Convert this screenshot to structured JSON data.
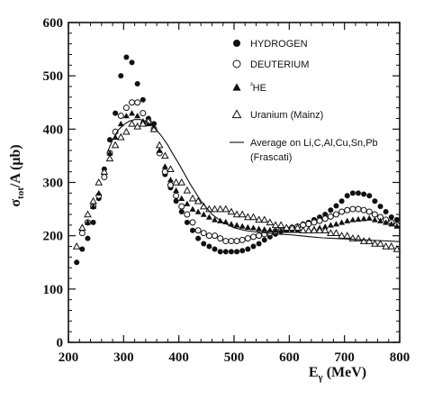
{
  "chart_data": {
    "type": "scatter",
    "xlabel": {
      "main": "E",
      "sub": "γ",
      "unit": " (MeV)"
    },
    "ylabel": {
      "main": "σ",
      "sub": "tot",
      "tail": "/A (μb)"
    },
    "xlim": [
      200,
      800
    ],
    "ylim": [
      0,
      600
    ],
    "xticks": [
      "200",
      "300",
      "400",
      "500",
      "600",
      "700",
      "800"
    ],
    "yticks": [
      "0",
      "100",
      "200",
      "300",
      "400",
      "500",
      "600"
    ],
    "grid": false,
    "legend_position": "top-right",
    "series": [
      {
        "name": "HYDROGEN",
        "marker": "filled-circle",
        "x": [
          215,
          225,
          235,
          245,
          255,
          265,
          275,
          285,
          295,
          305,
          315,
          325,
          335,
          345,
          355,
          365,
          375,
          385,
          395,
          405,
          415,
          425,
          435,
          445,
          455,
          465,
          475,
          485,
          495,
          505,
          515,
          525,
          535,
          545,
          555,
          565,
          575,
          585,
          595,
          605,
          615,
          625,
          635,
          645,
          655,
          665,
          675,
          685,
          695,
          705,
          715,
          725,
          735,
          745,
          755,
          765,
          775,
          785,
          795
        ],
        "y": [
          150,
          175,
          195,
          225,
          270,
          325,
          380,
          430,
          500,
          535,
          525,
          485,
          455,
          420,
          410,
          355,
          315,
          290,
          265,
          245,
          225,
          210,
          195,
          185,
          180,
          175,
          170,
          170,
          170,
          170,
          172,
          175,
          180,
          185,
          192,
          198,
          203,
          208,
          212,
          215,
          218,
          222,
          225,
          230,
          235,
          240,
          248,
          256,
          265,
          275,
          280,
          280,
          278,
          275,
          265,
          255,
          245,
          235,
          230
        ]
      },
      {
        "name": "DEUTERIUM",
        "marker": "open-circle",
        "x": [
          225,
          235,
          245,
          255,
          265,
          275,
          285,
          295,
          305,
          315,
          325,
          335,
          345,
          355,
          365,
          375,
          385,
          395,
          405,
          415,
          425,
          435,
          445,
          455,
          465,
          475,
          485,
          495,
          505,
          515,
          525,
          535,
          545,
          555,
          565,
          575,
          585,
          595,
          605,
          615,
          625,
          635,
          645,
          655,
          665,
          675,
          685,
          695,
          705,
          715,
          725,
          735,
          745,
          755,
          765,
          775,
          785,
          795
        ],
        "y": [
          205,
          225,
          255,
          275,
          310,
          355,
          395,
          425,
          440,
          450,
          450,
          430,
          415,
          400,
          355,
          320,
          295,
          275,
          255,
          240,
          225,
          210,
          205,
          200,
          200,
          195,
          190,
          190,
          190,
          192,
          195,
          198,
          200,
          203,
          205,
          208,
          210,
          212,
          215,
          217,
          220,
          222,
          225,
          228,
          232,
          236,
          240,
          245,
          248,
          250,
          250,
          248,
          245,
          240,
          235,
          230,
          225,
          220
        ]
      },
      {
        "name": "³HE",
        "marker": "filled-triangle",
        "x": [
          235,
          245,
          255,
          265,
          275,
          285,
          295,
          305,
          315,
          325,
          335,
          345,
          355,
          365,
          375,
          385,
          395,
          405,
          415,
          425,
          435,
          445,
          455,
          465,
          475,
          485,
          495,
          505,
          515,
          525,
          535,
          545,
          555,
          565,
          575,
          585,
          595,
          605,
          615,
          625,
          635,
          645,
          655,
          665,
          675,
          685,
          695,
          705,
          715,
          725,
          735,
          745,
          755,
          765,
          775,
          785,
          795
        ],
        "y": [
          225,
          255,
          280,
          320,
          355,
          385,
          410,
          425,
          430,
          425,
          415,
          410,
          400,
          360,
          330,
          305,
          285,
          270,
          260,
          250,
          245,
          240,
          235,
          230,
          228,
          226,
          222,
          220,
          218,
          216,
          215,
          213,
          212,
          211,
          210,
          210,
          210,
          210,
          210,
          211,
          212,
          213,
          215,
          217,
          220,
          222,
          225,
          228,
          230,
          231,
          232,
          233,
          230,
          228,
          225,
          222,
          218
        ]
      },
      {
        "name": "Uranium (Mainz)",
        "marker": "open-triangle",
        "x": [
          215,
          225,
          235,
          245,
          255,
          265,
          275,
          285,
          295,
          305,
          315,
          325,
          335,
          345,
          355,
          365,
          375,
          385,
          395,
          405,
          415,
          425,
          435,
          445,
          455,
          465,
          475,
          485,
          495,
          505,
          515,
          525,
          535,
          545,
          555,
          565,
          575,
          585,
          595,
          605,
          615,
          625,
          635,
          645,
          655,
          665,
          675,
          685,
          695,
          705,
          715,
          725,
          735,
          745,
          755,
          765,
          775,
          785,
          795
        ],
        "y": [
          180,
          215,
          240,
          265,
          300,
          320,
          345,
          370,
          385,
          395,
          410,
          405,
          410,
          415,
          400,
          370,
          350,
          325,
          300,
          300,
          285,
          270,
          265,
          255,
          250,
          250,
          250,
          250,
          245,
          240,
          240,
          235,
          235,
          230,
          230,
          225,
          220,
          220,
          215,
          215,
          215,
          210,
          210,
          210,
          210,
          210,
          205,
          205,
          200,
          200,
          195,
          195,
          190,
          190,
          185,
          185,
          180,
          180,
          175
        ]
      },
      {
        "name": "Average on Li,C,Al,Cu,Sn,Pb (Frascati)",
        "legend_lines": [
          "Average on Li,C,Al,Cu,Sn,Pb",
          "(Frascati)"
        ],
        "marker": "line",
        "x": [
          270,
          280,
          290,
          300,
          310,
          320,
          330,
          340,
          350,
          360,
          370,
          380,
          390,
          400,
          420,
          440,
          460,
          480,
          500,
          520,
          540,
          560,
          580,
          600,
          620,
          640,
          660,
          680,
          700,
          720,
          740,
          760,
          780,
          800
        ],
        "y": [
          355,
          380,
          398,
          408,
          415,
          418,
          418,
          415,
          408,
          398,
          385,
          370,
          352,
          335,
          298,
          265,
          240,
          225,
          215,
          210,
          207,
          205,
          203,
          202,
          200,
          198,
          196,
          195,
          194,
          193,
          192,
          191,
          190,
          189
        ]
      }
    ]
  }
}
